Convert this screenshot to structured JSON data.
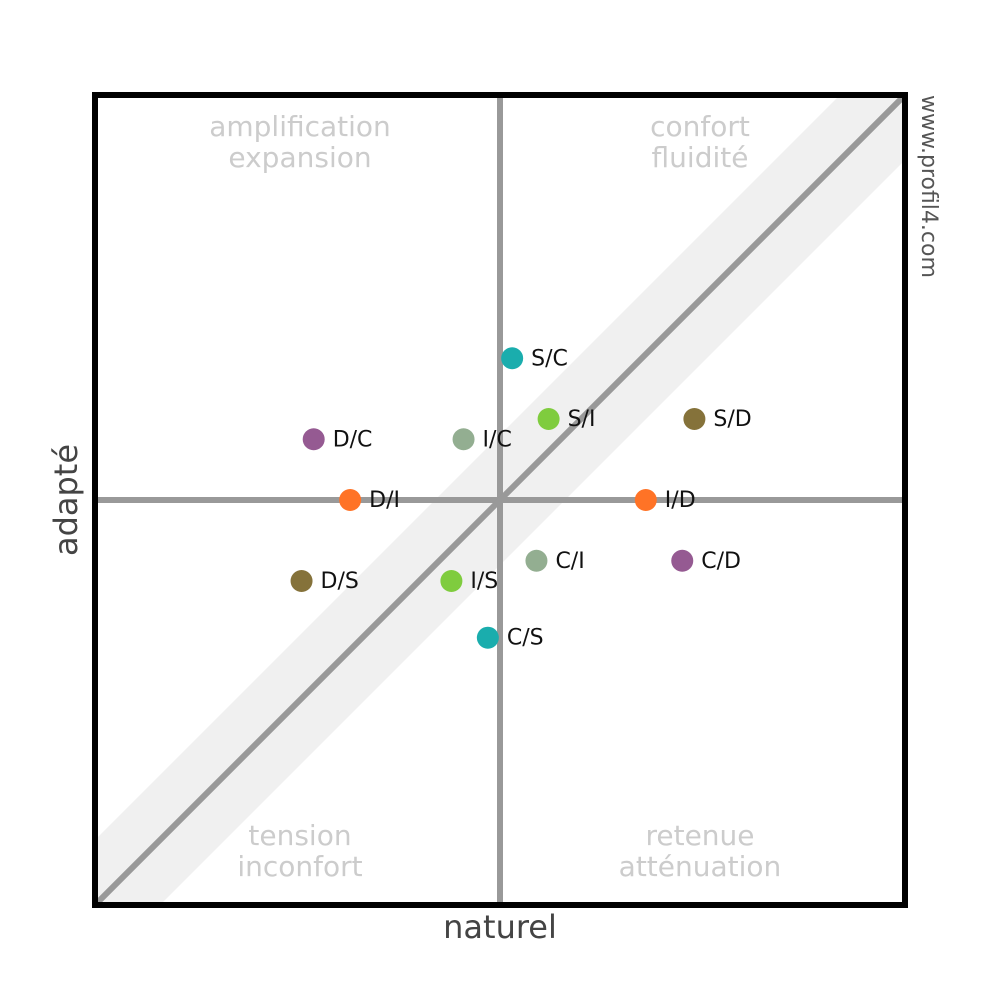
{
  "chart_data": {
    "type": "scatter",
    "xlabel": "naturel",
    "ylabel": "adapté",
    "watermark": "www.profil4.com",
    "quadrant_labels": [
      [
        "amplification",
        "expansion"
      ],
      [
        "confort",
        "fluidité"
      ],
      [
        "tension",
        "inconfort"
      ],
      [
        "retenue",
        "atténuation"
      ]
    ],
    "xlim": [
      -1,
      1
    ],
    "ylim": [
      -1,
      1
    ],
    "points": [
      {
        "label": "S/C",
        "x": 0.03,
        "y": 0.35,
        "color": "#1aadad"
      },
      {
        "label": "S/I",
        "x": 0.12,
        "y": 0.2,
        "color": "#7fcc3e"
      },
      {
        "label": "S/D",
        "x": 0.48,
        "y": 0.2,
        "color": "#85723a"
      },
      {
        "label": "D/C",
        "x": -0.46,
        "y": 0.15,
        "color": "#955a92"
      },
      {
        "label": "I/C",
        "x": -0.09,
        "y": 0.15,
        "color": "#93ae91"
      },
      {
        "label": "D/I",
        "x": -0.37,
        "y": 0,
        "color": "#ff7326"
      },
      {
        "label": "I/D",
        "x": 0.36,
        "y": 0,
        "color": "#ff7326"
      },
      {
        "label": "C/I",
        "x": 0.09,
        "y": -0.15,
        "color": "#93ae91"
      },
      {
        "label": "C/D",
        "x": 0.45,
        "y": -0.15,
        "color": "#955a92"
      },
      {
        "label": "D/S",
        "x": -0.49,
        "y": -0.2,
        "color": "#85723a"
      },
      {
        "label": "I/S",
        "x": -0.12,
        "y": -0.2,
        "color": "#7fcc3e"
      },
      {
        "label": "C/S",
        "x": -0.03,
        "y": -0.34,
        "color": "#1aadad"
      }
    ]
  }
}
